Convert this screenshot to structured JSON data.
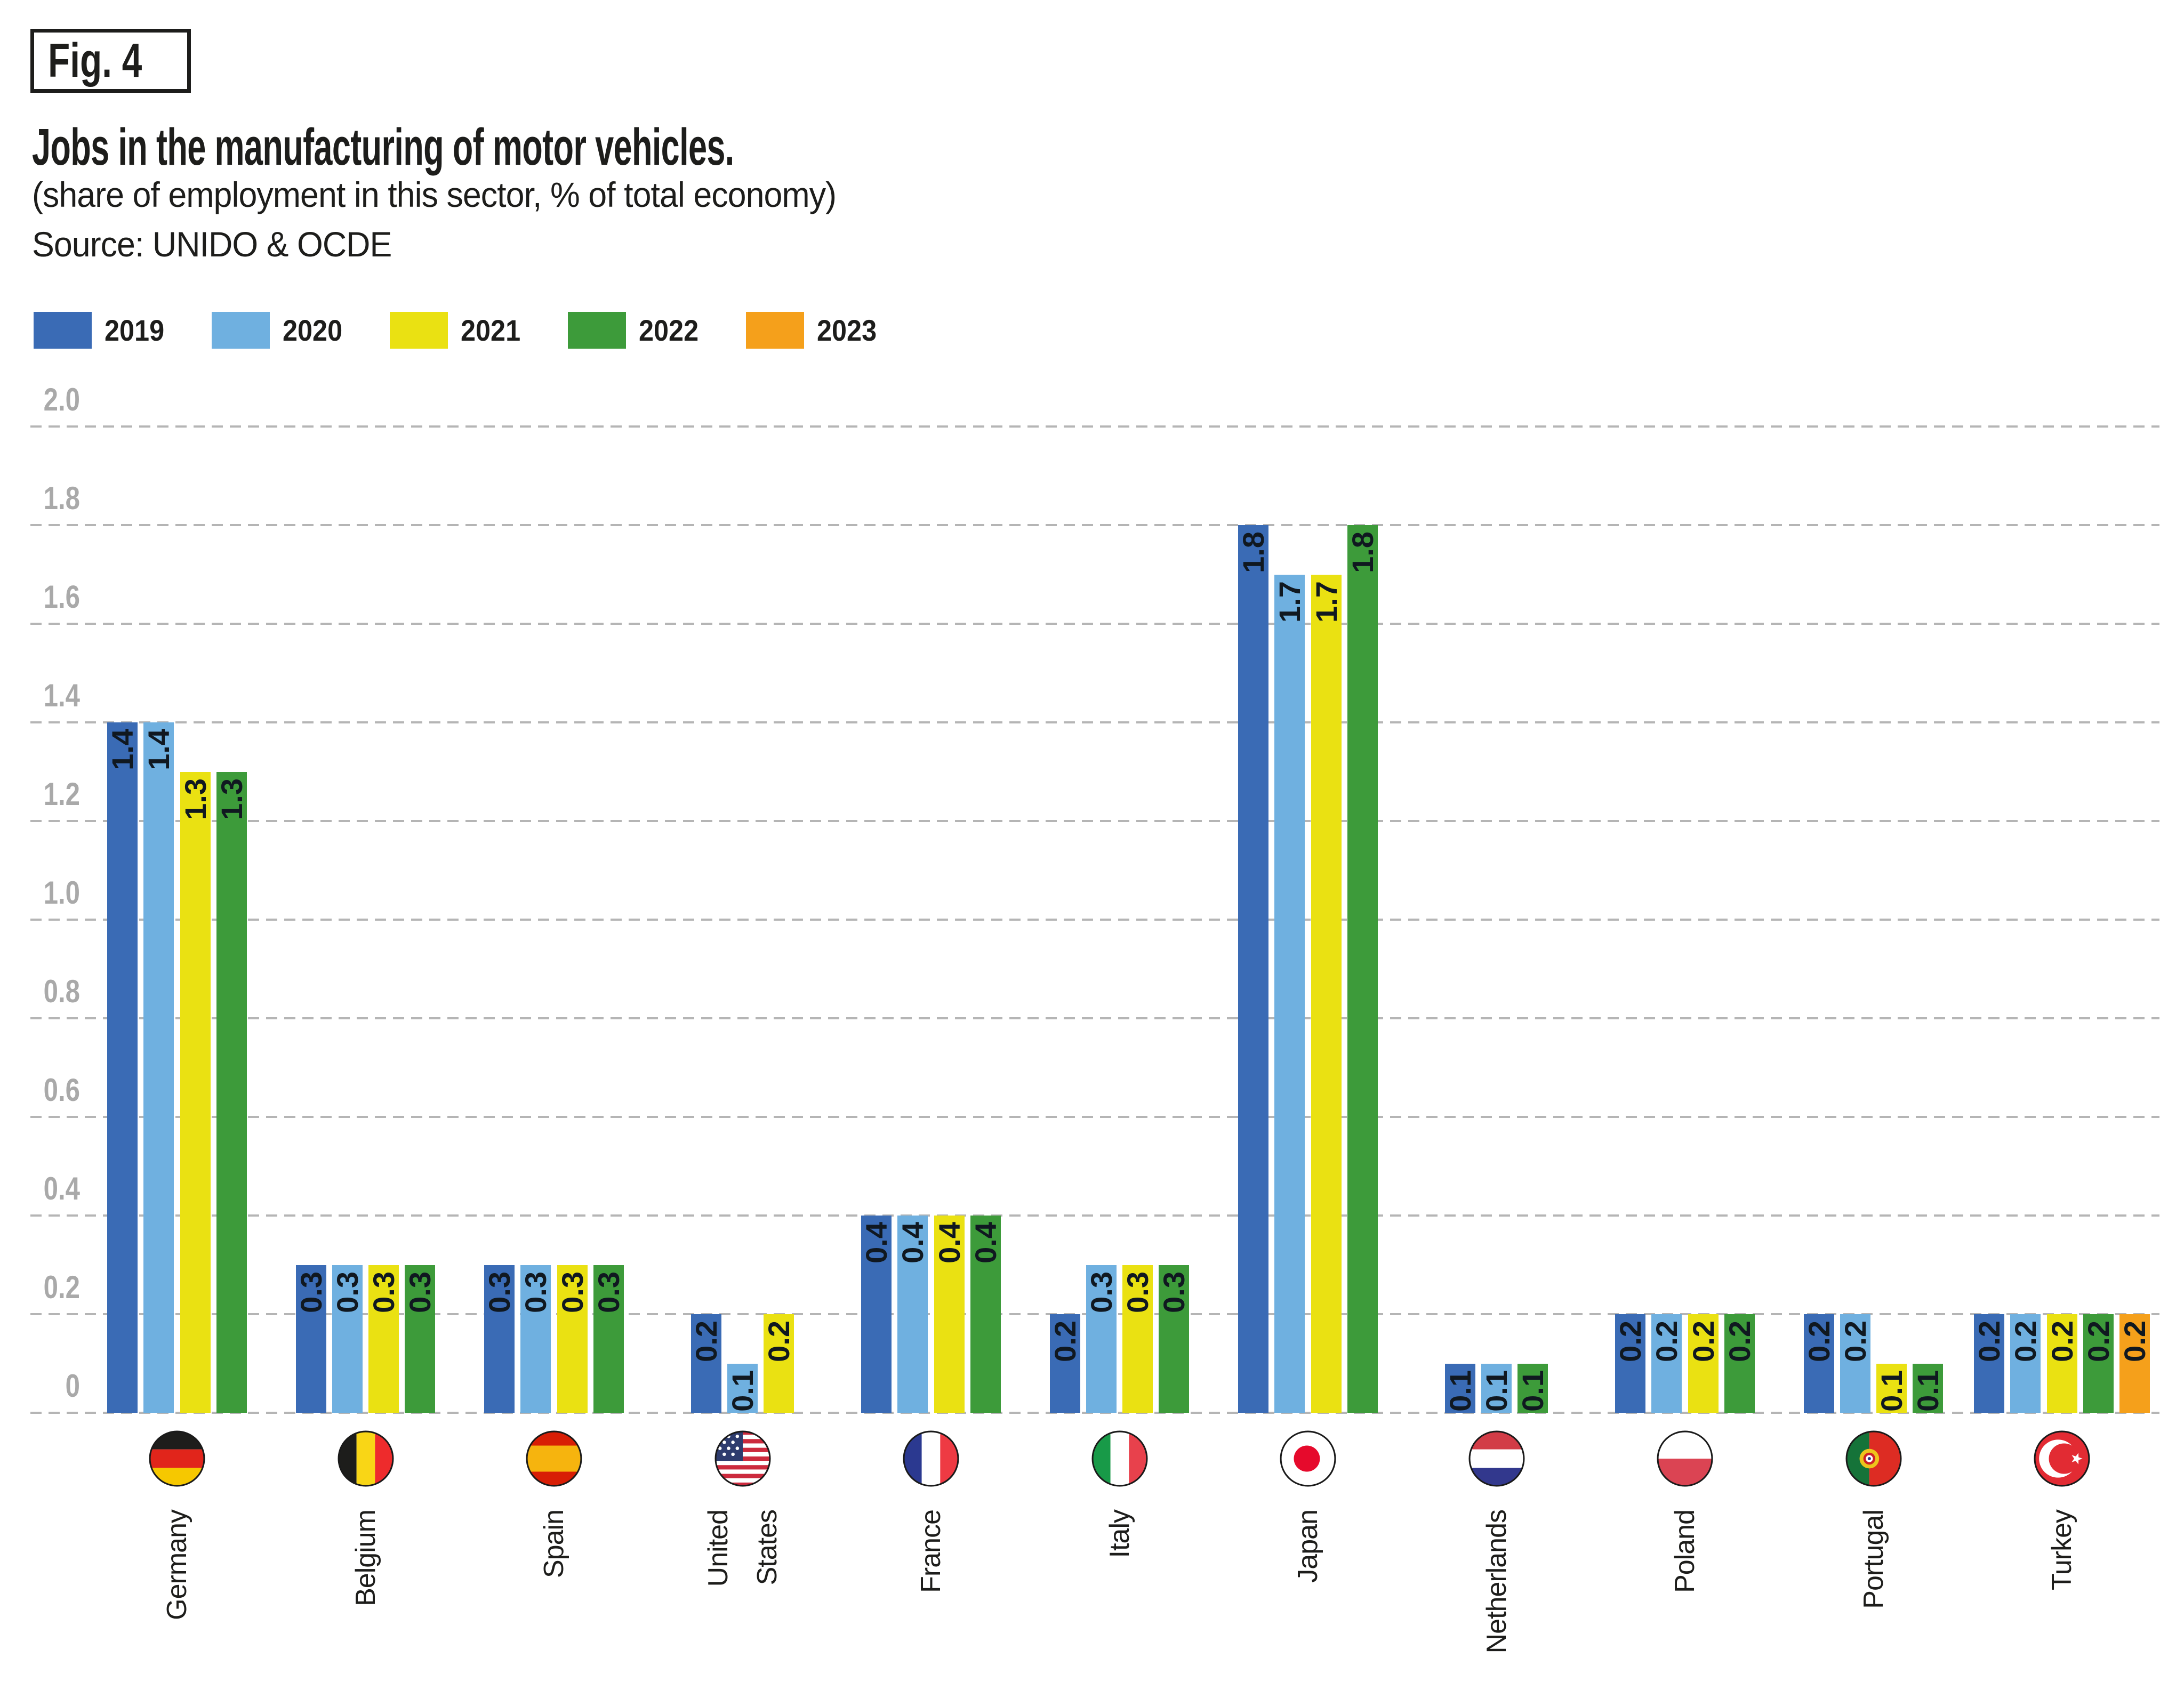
{
  "figure": {
    "tag": "Fig. 4"
  },
  "header": {
    "title": "Jobs in the manufacturing of motor vehicles.",
    "subtitle": "(share of employment in this sector, % of total economy)",
    "source": "Source: UNIDO & OCDE"
  },
  "chart_data": {
    "type": "bar",
    "title": "Jobs in the manufacturing of motor vehicles.",
    "subtitle": "(share of employment in this sector, % of total economy)",
    "source": "Source: UNIDO & OCDE",
    "ylim": [
      0,
      2.0
    ],
    "yticks": [
      "0",
      "0.2",
      "0.4",
      "0.6",
      "0.8",
      "1.0",
      "1.2",
      "1.4",
      "1.6",
      "1.8",
      "2.0"
    ],
    "grid": "horizontal-dashed",
    "gridline_color": "#b5b5b5",
    "ytick_color": "#a9a9a9",
    "value_label_color": "#101820",
    "legend_position": "top-left",
    "years": [
      "2019",
      "2020",
      "2021",
      "2022",
      "2023"
    ],
    "colors": [
      "#3A6BB5",
      "#6FB0E0",
      "#EAE112",
      "#3D9B3A",
      "#F5A01B"
    ],
    "countries": [
      {
        "name": "Germany",
        "flag": "germany",
        "values": [
          1.4,
          1.4,
          1.3,
          1.3,
          null
        ]
      },
      {
        "name": "Belgium",
        "flag": "belgium",
        "values": [
          0.3,
          0.3,
          0.3,
          0.3,
          null
        ]
      },
      {
        "name": "Spain",
        "flag": "spain",
        "values": [
          0.3,
          0.3,
          0.3,
          0.3,
          null
        ]
      },
      {
        "name": "United States",
        "label_lines": [
          "United",
          "States"
        ],
        "flag": "united-states",
        "values": [
          0.2,
          0.1,
          0.2,
          null,
          null
        ]
      },
      {
        "name": "France",
        "flag": "france",
        "values": [
          0.4,
          0.4,
          0.4,
          0.4,
          null
        ]
      },
      {
        "name": "Italy",
        "flag": "italy",
        "values": [
          0.2,
          0.3,
          0.3,
          0.3,
          null
        ]
      },
      {
        "name": "Japan",
        "flag": "japan",
        "values": [
          1.8,
          1.7,
          1.7,
          1.8,
          null
        ]
      },
      {
        "name": "Netherlands",
        "flag": "netherlands",
        "values": [
          0.1,
          0.1,
          null,
          0.1,
          null
        ]
      },
      {
        "name": "Poland",
        "flag": "poland",
        "values": [
          0.2,
          0.2,
          0.2,
          0.2,
          null
        ]
      },
      {
        "name": "Portugal",
        "flag": "portugal",
        "values": [
          0.2,
          0.2,
          0.1,
          0.1,
          null
        ]
      },
      {
        "name": "Turkey",
        "flag": "turkey",
        "values": [
          0.2,
          0.2,
          0.2,
          0.2,
          0.2
        ]
      }
    ]
  }
}
